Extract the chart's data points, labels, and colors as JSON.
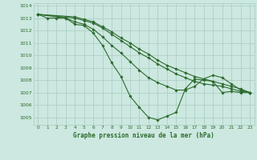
{
  "title": "Graphe pression niveau de la mer (hPa)",
  "bg_color": "#cce8e0",
  "grid_color": "#a8ccbf",
  "line_color": "#2d6a2d",
  "ylim": [
    1004.4,
    1014.2
  ],
  "xlim": [
    -0.5,
    23.5
  ],
  "yticks": [
    1005,
    1006,
    1007,
    1008,
    1009,
    1010,
    1011,
    1012,
    1013,
    1014
  ],
  "xticks": [
    0,
    1,
    2,
    3,
    4,
    5,
    6,
    7,
    8,
    9,
    10,
    11,
    12,
    13,
    14,
    15,
    16,
    17,
    18,
    19,
    20,
    21,
    22,
    23
  ],
  "series": [
    {
      "x": [
        0,
        1,
        2,
        3,
        4,
        5,
        6,
        7,
        8,
        9,
        10,
        11,
        12,
        13,
        14,
        15,
        16,
        17,
        18,
        19,
        20,
        21,
        22,
        23
      ],
      "y": [
        1013.3,
        1013.0,
        1013.0,
        1013.0,
        1012.5,
        1012.4,
        1011.8,
        1010.8,
        1009.4,
        1008.3,
        1006.7,
        1005.8,
        1005.0,
        1004.8,
        1005.1,
        1005.4,
        1007.3,
        1008.1,
        1008.0,
        1007.9,
        1007.0,
        1007.1,
        1007.0,
        1007.0
      ]
    },
    {
      "x": [
        0,
        4,
        5,
        6,
        7,
        8,
        9,
        10,
        11,
        12,
        13,
        14,
        15,
        16,
        17,
        18,
        19,
        20,
        21,
        22,
        23
      ],
      "y": [
        1013.3,
        1013.0,
        1012.8,
        1012.6,
        1012.2,
        1011.7,
        1011.2,
        1010.7,
        1010.2,
        1009.8,
        1009.3,
        1008.9,
        1008.5,
        1008.2,
        1007.9,
        1007.7,
        1007.6,
        1007.5,
        1007.3,
        1007.1,
        1007.0
      ]
    },
    {
      "x": [
        0,
        4,
        5,
        6,
        7,
        8,
        9,
        10,
        11,
        12,
        13,
        14,
        15,
        16,
        17,
        18,
        19,
        20,
        21,
        22,
        23
      ],
      "y": [
        1013.3,
        1013.1,
        1012.9,
        1012.7,
        1012.3,
        1011.9,
        1011.4,
        1011.0,
        1010.5,
        1010.1,
        1009.6,
        1009.2,
        1008.9,
        1008.6,
        1008.3,
        1008.1,
        1007.9,
        1007.7,
        1007.5,
        1007.3,
        1007.0
      ]
    },
    {
      "x": [
        0,
        3,
        4,
        5,
        6,
        7,
        8,
        9,
        10,
        11,
        12,
        13,
        14,
        15,
        16,
        17,
        18,
        19,
        20,
        21,
        22,
        23
      ],
      "y": [
        1013.3,
        1013.0,
        1012.7,
        1012.5,
        1012.1,
        1011.5,
        1010.8,
        1010.2,
        1009.5,
        1008.8,
        1008.2,
        1007.8,
        1007.5,
        1007.2,
        1007.2,
        1007.5,
        1008.1,
        1008.4,
        1008.2,
        1007.7,
        1007.2,
        1007.0
      ]
    }
  ]
}
